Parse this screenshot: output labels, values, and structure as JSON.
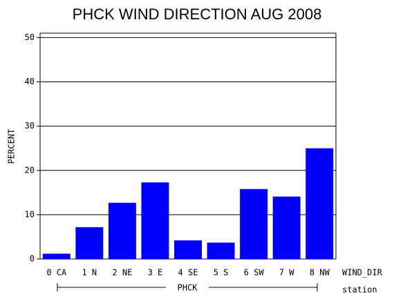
{
  "chart_data": {
    "type": "bar",
    "title": "PHCK WIND DIRECTION AUG 2008",
    "y_label": "PERCENT",
    "x_label": "WIND_DIR",
    "group_label": "station",
    "group": "PHCK",
    "categories": [
      "0 CA",
      "1 N",
      "2 NE",
      "3 E",
      "4 SE",
      "5 S",
      "6 SW",
      "7 W",
      "8 NW"
    ],
    "values": [
      1.2,
      7.2,
      12.7,
      17.3,
      4.2,
      3.7,
      15.8,
      14.1,
      25.0
    ],
    "color": "#0000ff",
    "ylim": [
      0,
      51
    ],
    "yticks": [
      0,
      10,
      20,
      30,
      40,
      50
    ],
    "grid": true
  }
}
